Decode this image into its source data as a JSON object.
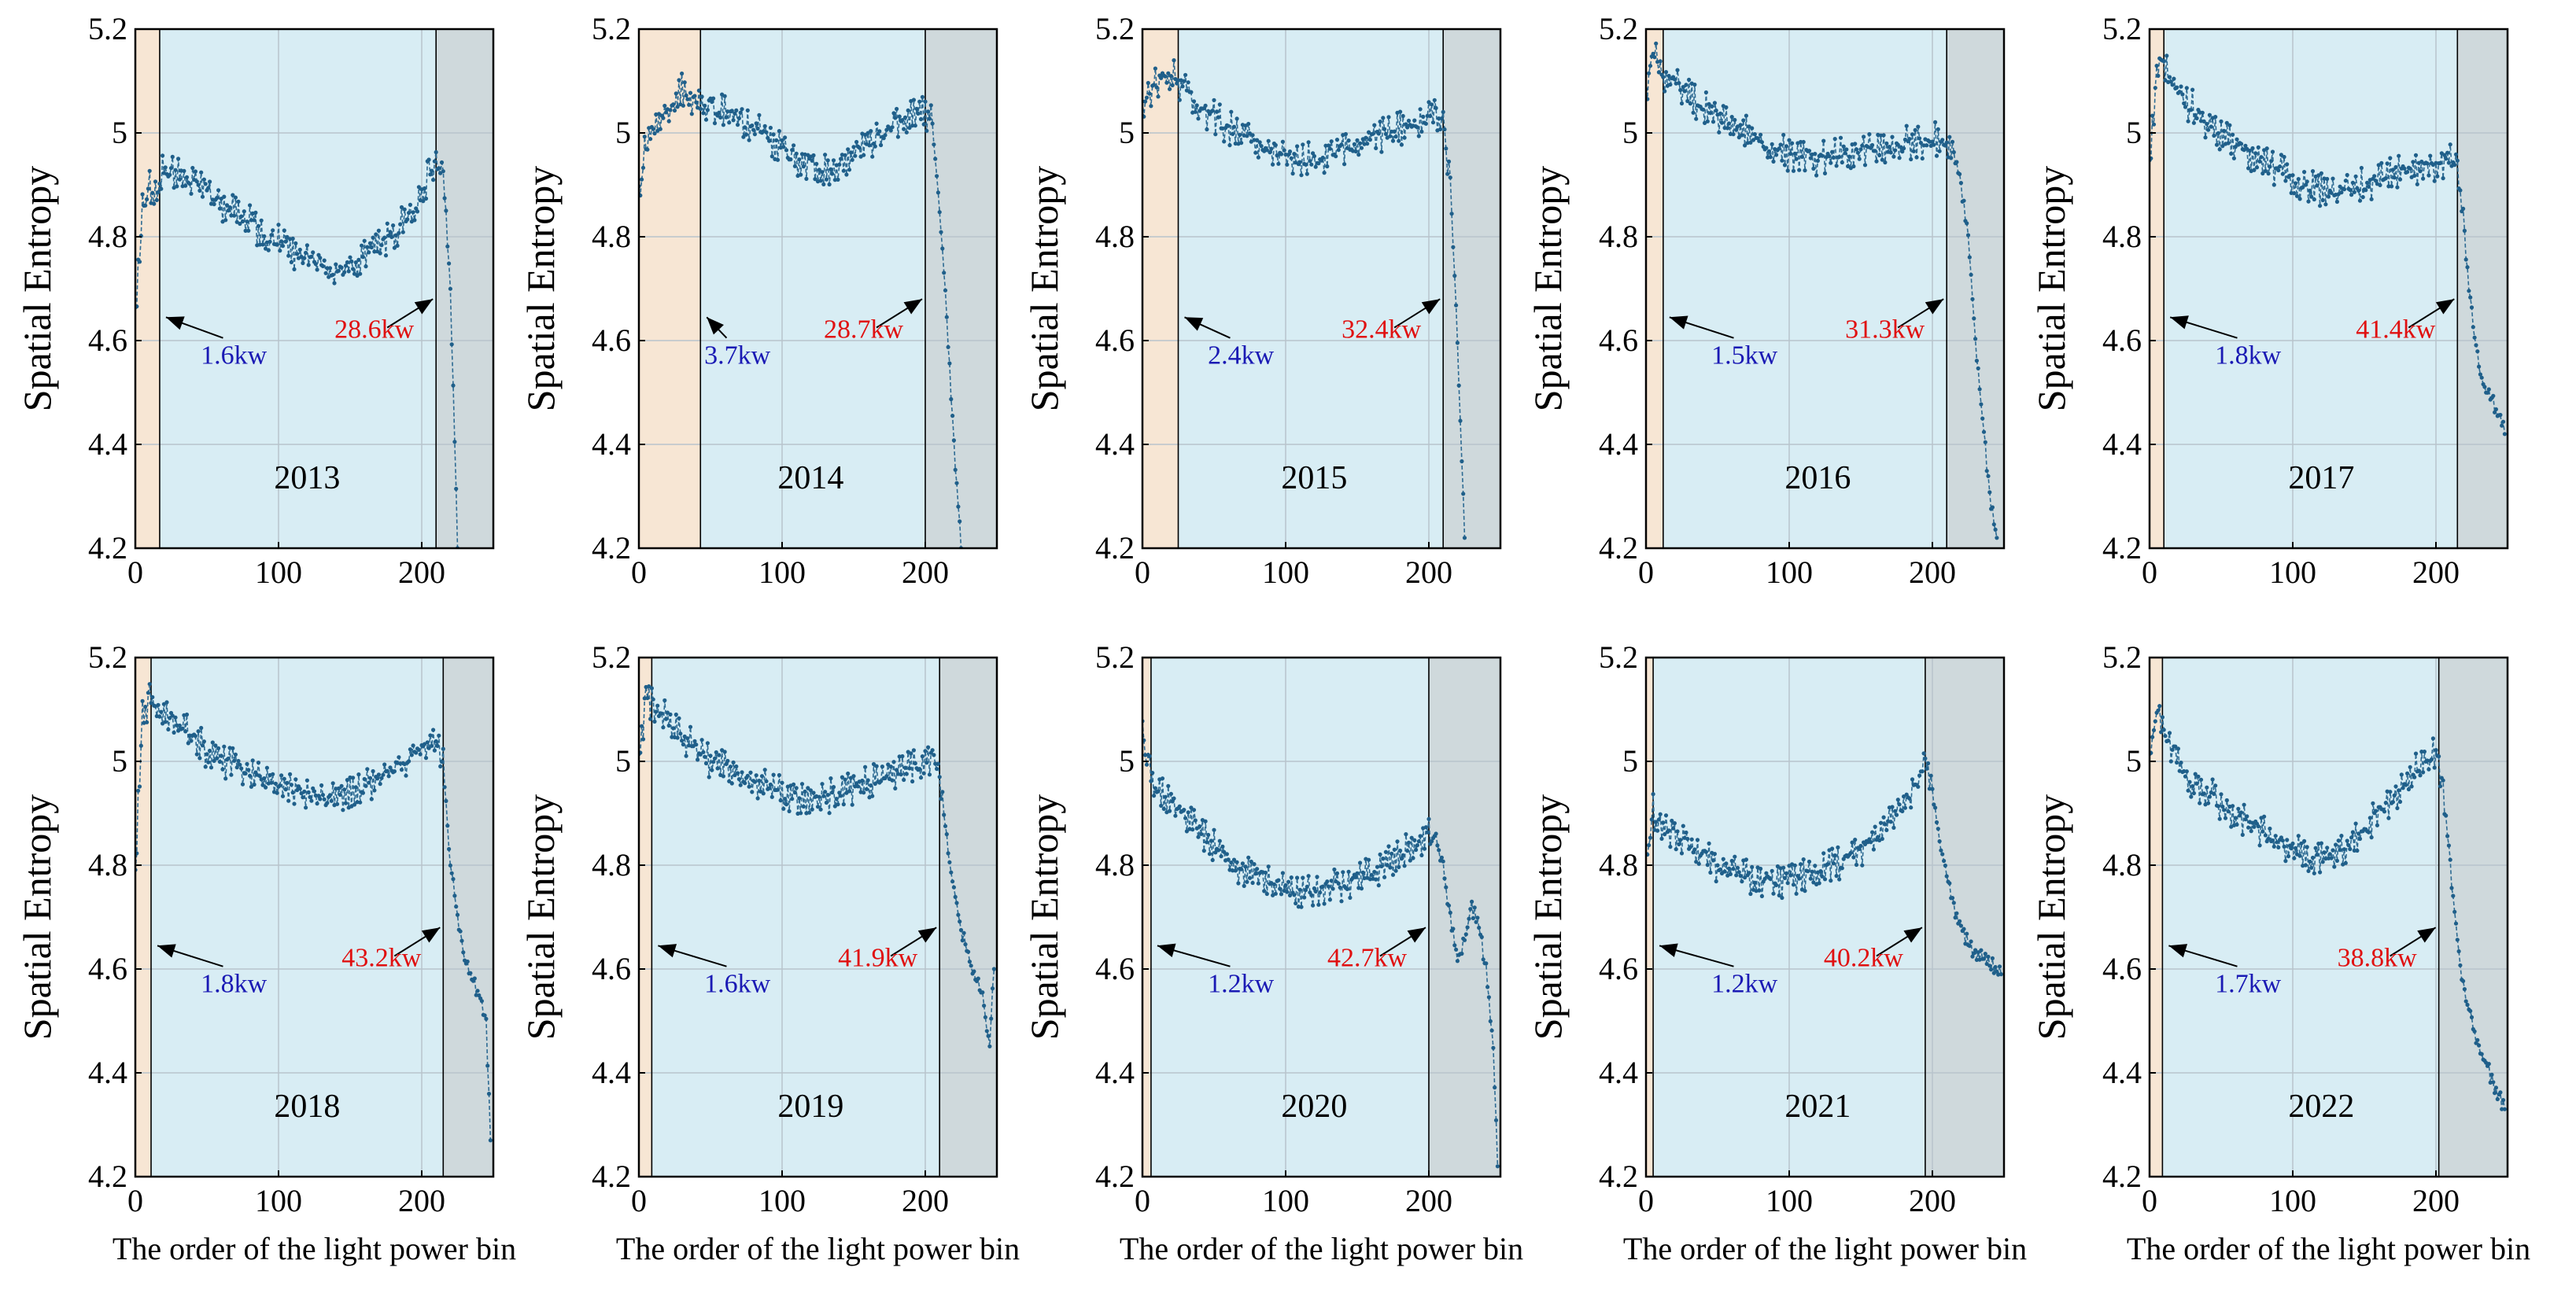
{
  "figure": {
    "ylabel": "Spatial Entropy",
    "xlabel": "The order of the light power bin"
  },
  "chart_data": [
    {
      "type": "line",
      "title": "2013",
      "x_range": [
        0,
        250
      ],
      "ylim": [
        4.2,
        5.2
      ],
      "xticks": [
        "0",
        "100",
        "200"
      ],
      "yticks": [
        "4.2",
        "4.4",
        "4.6",
        "4.8",
        "5",
        "5.2"
      ],
      "grid": true,
      "low_bin": 17,
      "high_bin": 210,
      "low_label": "1.6kw",
      "high_label": "28.6kw",
      "series": [
        {
          "name": "2013",
          "x": [
            0,
            5,
            10,
            15,
            20,
            30,
            40,
            50,
            60,
            70,
            80,
            90,
            100,
            110,
            120,
            130,
            140,
            150,
            160,
            170,
            180,
            190,
            200,
            205,
            210,
            215,
            220,
            225
          ],
          "values": [
            4.64,
            4.85,
            4.9,
            4.88,
            4.93,
            4.92,
            4.9,
            4.89,
            4.86,
            4.85,
            4.83,
            4.8,
            4.79,
            4.77,
            4.76,
            4.75,
            4.73,
            4.74,
            4.76,
            4.78,
            4.8,
            4.84,
            4.88,
            4.92,
            4.95,
            4.93,
            4.7,
            4.2
          ]
        }
      ]
    },
    {
      "type": "line",
      "title": "2014",
      "x_range": [
        0,
        250
      ],
      "ylim": [
        4.2,
        5.2
      ],
      "xticks": [
        "0",
        "100",
        "200"
      ],
      "yticks": [
        "4.2",
        "4.4",
        "4.6",
        "4.8",
        "5",
        "5.2"
      ],
      "grid": true,
      "low_bin": 43,
      "high_bin": 200,
      "low_label": "3.7kw",
      "high_label": "28.7kw",
      "series": [
        {
          "name": "2014",
          "x": [
            0,
            5,
            10,
            20,
            30,
            40,
            50,
            60,
            70,
            80,
            90,
            100,
            110,
            120,
            130,
            140,
            150,
            160,
            170,
            180,
            190,
            200,
            205,
            210,
            215,
            220,
            225
          ],
          "values": [
            4.88,
            4.98,
            5.0,
            5.05,
            5.08,
            5.07,
            5.05,
            5.04,
            5.03,
            5.01,
            4.99,
            4.97,
            4.95,
            4.94,
            4.93,
            4.94,
            4.96,
            4.98,
            5.0,
            5.02,
            5.04,
            5.04,
            5.02,
            4.85,
            4.65,
            4.4,
            4.2
          ]
        }
      ]
    },
    {
      "type": "line",
      "title": "2015",
      "x_range": [
        0,
        250
      ],
      "ylim": [
        4.2,
        5.2
      ],
      "xticks": [
        "0",
        "100",
        "200"
      ],
      "yticks": [
        "4.2",
        "4.4",
        "4.6",
        "4.8",
        "5",
        "5.2"
      ],
      "grid": true,
      "low_bin": 25,
      "high_bin": 210,
      "low_label": "2.4kw",
      "high_label": "32.4kw",
      "series": [
        {
          "name": "2015",
          "x": [
            0,
            5,
            10,
            20,
            25,
            30,
            40,
            50,
            60,
            70,
            80,
            90,
            100,
            110,
            120,
            130,
            140,
            150,
            160,
            170,
            180,
            190,
            200,
            205,
            210,
            215,
            220,
            225
          ],
          "values": [
            5.05,
            5.08,
            5.1,
            5.11,
            5.1,
            5.08,
            5.05,
            5.03,
            5.01,
            5.0,
            4.98,
            4.97,
            4.96,
            4.95,
            4.95,
            4.96,
            4.97,
            4.98,
            4.99,
            5.0,
            5.01,
            5.02,
            5.03,
            5.04,
            5.02,
            4.9,
            4.6,
            4.22
          ]
        }
      ]
    },
    {
      "type": "line",
      "title": "2016",
      "x_range": [
        0,
        250
      ],
      "ylim": [
        4.2,
        5.2
      ],
      "xticks": [
        "0",
        "100",
        "200"
      ],
      "yticks": [
        "4.2",
        "4.4",
        "4.6",
        "4.8",
        "5",
        "5.2"
      ],
      "grid": true,
      "low_bin": 12,
      "high_bin": 210,
      "low_label": "1.5kw",
      "high_label": "31.3kw",
      "series": [
        {
          "name": "2016",
          "x": [
            0,
            5,
            10,
            20,
            30,
            40,
            50,
            60,
            70,
            80,
            90,
            100,
            110,
            120,
            130,
            140,
            150,
            160,
            170,
            180,
            190,
            200,
            210,
            215,
            220,
            225,
            230,
            235,
            240,
            245
          ],
          "values": [
            5.08,
            5.15,
            5.12,
            5.1,
            5.07,
            5.05,
            5.03,
            5.01,
            5.0,
            4.98,
            4.97,
            4.96,
            4.96,
            4.95,
            4.96,
            4.96,
            4.97,
            4.97,
            4.97,
            4.98,
            4.98,
            4.99,
            4.98,
            4.95,
            4.9,
            4.8,
            4.6,
            4.45,
            4.3,
            4.22
          ]
        }
      ]
    },
    {
      "type": "line",
      "title": "2017",
      "x_range": [
        0,
        250
      ],
      "ylim": [
        4.2,
        5.2
      ],
      "xticks": [
        "0",
        "100",
        "200"
      ],
      "yticks": [
        "4.2",
        "4.4",
        "4.6",
        "4.8",
        "5",
        "5.2"
      ],
      "grid": true,
      "low_bin": 10,
      "high_bin": 215,
      "low_label": "1.8kw",
      "high_label": "41.4kw",
      "series": [
        {
          "name": "2017",
          "x": [
            0,
            5,
            10,
            15,
            20,
            30,
            40,
            50,
            60,
            70,
            80,
            90,
            100,
            110,
            120,
            130,
            140,
            150,
            160,
            170,
            180,
            190,
            200,
            210,
            215,
            220,
            225,
            230,
            235,
            240,
            245,
            248
          ],
          "values": [
            4.95,
            5.12,
            5.14,
            5.1,
            5.07,
            5.05,
            5.02,
            5.0,
            4.98,
            4.96,
            4.94,
            4.93,
            4.91,
            4.9,
            4.89,
            4.89,
            4.9,
            4.9,
            4.91,
            4.92,
            4.93,
            4.93,
            4.94,
            4.95,
            4.92,
            4.8,
            4.65,
            4.55,
            4.5,
            4.48,
            4.45,
            4.42
          ]
        }
      ]
    },
    {
      "type": "line",
      "title": "2018",
      "x_range": [
        0,
        250
      ],
      "ylim": [
        4.2,
        5.2
      ],
      "xticks": [
        "0",
        "100",
        "200"
      ],
      "yticks": [
        "4.2",
        "4.4",
        "4.6",
        "4.8",
        "5",
        "5.2"
      ],
      "grid": true,
      "low_bin": 11,
      "high_bin": 215,
      "low_label": "1.8kw",
      "high_label": "43.2kw",
      "series": [
        {
          "name": "2018",
          "x": [
            0,
            5,
            10,
            20,
            30,
            40,
            50,
            60,
            70,
            80,
            90,
            100,
            110,
            120,
            130,
            140,
            150,
            160,
            170,
            180,
            190,
            200,
            210,
            215,
            220,
            225,
            230,
            235,
            240,
            245,
            248
          ],
          "values": [
            4.8,
            5.1,
            5.12,
            5.1,
            5.07,
            5.05,
            5.02,
            5.0,
            4.99,
            4.98,
            4.97,
            4.96,
            4.95,
            4.94,
            4.93,
            4.93,
            4.94,
            4.95,
            4.96,
            4.98,
            5.0,
            5.02,
            5.03,
            5.0,
            4.8,
            4.7,
            4.62,
            4.58,
            4.55,
            4.5,
            4.27
          ]
        }
      ]
    },
    {
      "type": "line",
      "title": "2019",
      "x_range": [
        0,
        250
      ],
      "ylim": [
        4.2,
        5.2
      ],
      "xticks": [
        "0",
        "100",
        "200"
      ],
      "yticks": [
        "4.2",
        "4.4",
        "4.6",
        "4.8",
        "5",
        "5.2"
      ],
      "grid": true,
      "low_bin": 9,
      "high_bin": 210,
      "low_label": "1.6kw",
      "high_label": "41.9kw",
      "series": [
        {
          "name": "2019",
          "x": [
            0,
            5,
            10,
            20,
            30,
            40,
            50,
            60,
            70,
            80,
            90,
            100,
            110,
            120,
            130,
            140,
            150,
            160,
            170,
            180,
            190,
            200,
            205,
            210,
            215,
            220,
            225,
            230,
            235,
            240,
            245,
            248
          ],
          "values": [
            4.98,
            5.12,
            5.11,
            5.08,
            5.05,
            5.03,
            5.0,
            4.99,
            4.97,
            4.96,
            4.95,
            4.94,
            4.93,
            4.93,
            4.93,
            4.94,
            4.95,
            4.96,
            4.97,
            4.98,
            4.99,
            5.0,
            5.01,
            4.98,
            4.85,
            4.75,
            4.68,
            4.62,
            4.58,
            4.55,
            4.45,
            4.6
          ]
        }
      ]
    },
    {
      "type": "line",
      "title": "2020",
      "x_range": [
        0,
        250
      ],
      "ylim": [
        4.2,
        5.2
      ],
      "xticks": [
        "0",
        "100",
        "200"
      ],
      "yticks": [
        "4.2",
        "4.4",
        "4.6",
        "4.8",
        "5",
        "5.2"
      ],
      "grid": true,
      "low_bin": 6,
      "high_bin": 200,
      "low_label": "1.2kw",
      "high_label": "42.7kw",
      "series": [
        {
          "name": "2020",
          "x": [
            0,
            5,
            10,
            20,
            30,
            40,
            50,
            60,
            70,
            80,
            90,
            100,
            110,
            120,
            130,
            140,
            150,
            160,
            170,
            180,
            190,
            200,
            205,
            210,
            215,
            220,
            225,
            230,
            235,
            240,
            245,
            248
          ],
          "values": [
            5.05,
            4.98,
            4.95,
            4.92,
            4.9,
            4.87,
            4.84,
            4.81,
            4.79,
            4.78,
            4.77,
            4.76,
            4.75,
            4.75,
            4.76,
            4.76,
            4.77,
            4.79,
            4.8,
            4.82,
            4.84,
            4.86,
            4.85,
            4.8,
            4.7,
            4.62,
            4.65,
            4.72,
            4.68,
            4.6,
            4.45,
            4.22
          ]
        }
      ]
    },
    {
      "type": "line",
      "title": "2021",
      "x_range": [
        0,
        250
      ],
      "ylim": [
        4.2,
        5.2
      ],
      "xticks": [
        "0",
        "100",
        "200"
      ],
      "yticks": [
        "4.2",
        "4.4",
        "4.6",
        "4.8",
        "5",
        "5.2"
      ],
      "grid": true,
      "low_bin": 5,
      "high_bin": 195,
      "low_label": "1.2kw",
      "high_label": "40.2kw",
      "series": [
        {
          "name": "2021",
          "x": [
            0,
            5,
            10,
            20,
            30,
            40,
            50,
            60,
            70,
            80,
            90,
            100,
            110,
            120,
            130,
            140,
            150,
            160,
            170,
            180,
            190,
            195,
            200,
            205,
            210,
            215,
            220,
            225,
            230,
            235,
            240,
            245,
            248
          ],
          "values": [
            4.8,
            4.9,
            4.88,
            4.86,
            4.84,
            4.82,
            4.8,
            4.79,
            4.78,
            4.77,
            4.77,
            4.77,
            4.78,
            4.79,
            4.8,
            4.81,
            4.83,
            4.85,
            4.88,
            4.92,
            4.96,
            5.0,
            4.95,
            4.85,
            4.78,
            4.72,
            4.68,
            4.65,
            4.63,
            4.62,
            4.61,
            4.6,
            4.59
          ]
        }
      ]
    },
    {
      "type": "line",
      "title": "2022",
      "x_range": [
        0,
        250
      ],
      "ylim": [
        4.2,
        5.2
      ],
      "xticks": [
        "0",
        "100",
        "200"
      ],
      "yticks": [
        "4.2",
        "4.4",
        "4.6",
        "4.8",
        "5",
        "5.2"
      ],
      "grid": true,
      "low_bin": 9,
      "high_bin": 202,
      "low_label": "1.7kw",
      "high_label": "38.8kw",
      "series": [
        {
          "name": "2022",
          "x": [
            0,
            5,
            10,
            20,
            30,
            40,
            50,
            60,
            70,
            80,
            90,
            100,
            110,
            120,
            130,
            140,
            150,
            160,
            170,
            180,
            190,
            200,
            205,
            210,
            215,
            220,
            225,
            230,
            235,
            240,
            245,
            248
          ],
          "values": [
            5.0,
            5.1,
            5.06,
            5.0,
            4.96,
            4.94,
            4.92,
            4.9,
            4.88,
            4.86,
            4.84,
            4.83,
            4.82,
            4.81,
            4.82,
            4.84,
            4.87,
            4.9,
            4.93,
            4.96,
            5.0,
            5.02,
            4.96,
            4.8,
            4.65,
            4.55,
            4.5,
            4.45,
            4.42,
            4.38,
            4.35,
            4.33
          ]
        }
      ]
    }
  ]
}
